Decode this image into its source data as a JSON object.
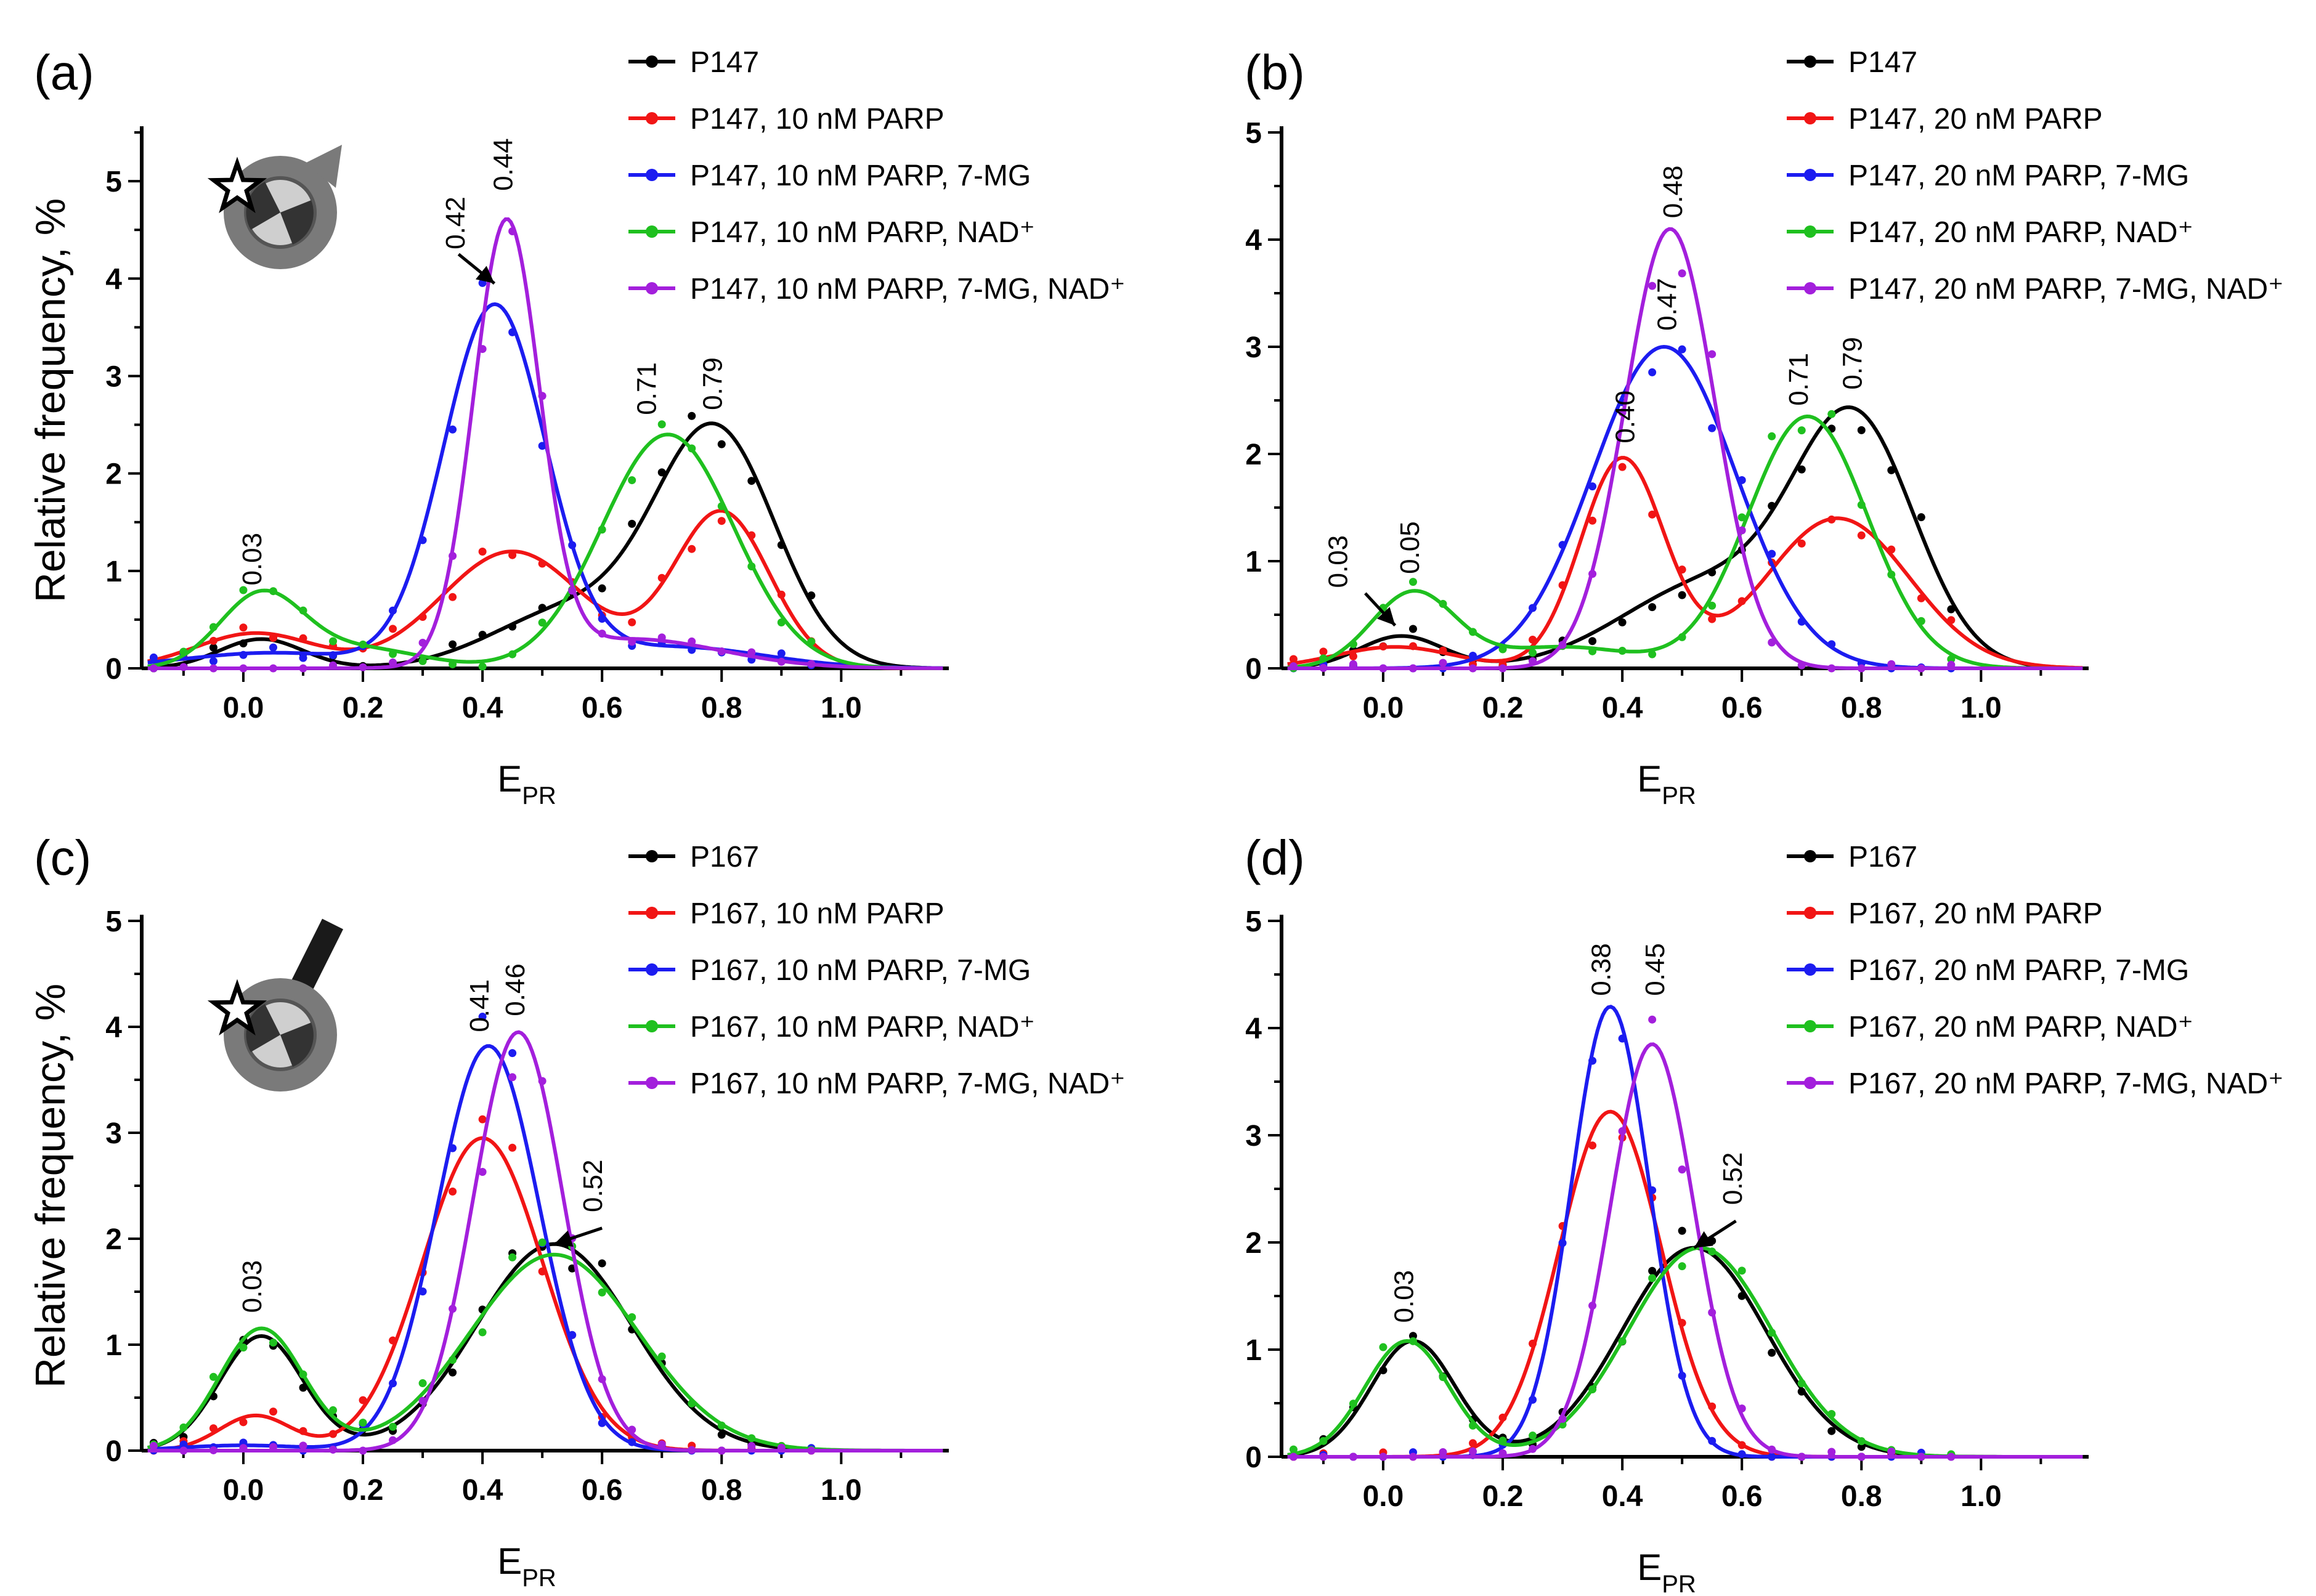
{
  "colors": {
    "black": "#000000",
    "red": "#f11515",
    "blue": "#1c1cf0",
    "green": "#1fc01f",
    "purple": "#a31fdc"
  },
  "chart_data": [
    {
      "id": "a",
      "label": "(a)",
      "type": "line",
      "xlabel": "E",
      "xlabel_sub": "PR",
      "ylabel": "Relative frequency, %",
      "xlim": [
        -0.17,
        1.18
      ],
      "ylim": [
        0,
        5.5
      ],
      "xticks": [
        "0.0",
        "0.2",
        "0.4",
        "0.6",
        "0.8",
        "1.0"
      ],
      "yticks": [
        "0",
        "1",
        "2",
        "3",
        "4",
        "5"
      ],
      "nucleosome_icon": "nucleosome-icon",
      "series": [
        {
          "name": "P147",
          "color": "black",
          "comps": [
            [
              0.3,
              0.03,
              0.07
            ],
            [
              2.4,
              0.79,
              0.1
            ],
            [
              0.6,
              0.55,
              0.13
            ]
          ]
        },
        {
          "name": "P147, 10 nM PARP",
          "color": "red",
          "comps": [
            [
              0.36,
              0.02,
              0.1
            ],
            [
              1.2,
              0.45,
              0.12
            ],
            [
              1.6,
              0.8,
              0.08
            ]
          ]
        },
        {
          "name": "P147, 10 nM PARP, 7-MG",
          "color": "blue",
          "comps": [
            [
              0.16,
              0.05,
              0.15
            ],
            [
              3.7,
              0.42,
              0.085
            ],
            [
              0.22,
              0.72,
              0.15
            ]
          ]
        },
        {
          "name": "P147, 10 nM PARP, NAD⁺",
          "color": "green",
          "comps": [
            [
              0.75,
              0.03,
              0.07
            ],
            [
              0.2,
              0.2,
              0.1
            ],
            [
              2.4,
              0.71,
              0.11
            ]
          ]
        },
        {
          "name": "P147, 10 nM PARP, 7-MG, NAD⁺",
          "color": "purple",
          "comps": [
            [
              4.5,
              0.44,
              0.055
            ],
            [
              0.3,
              0.65,
              0.15
            ]
          ]
        }
      ],
      "annotations": [
        {
          "text": "0.03",
          "x": 0.03,
          "y": 0.85,
          "rot": -90
        },
        {
          "text": "0.42",
          "x": 0.37,
          "y": 4.3,
          "rot": -90,
          "arrow": [
            0.36,
            4.25,
            0.42,
            3.95
          ]
        },
        {
          "text": "0.44",
          "x": 0.45,
          "y": 4.9,
          "rot": -90
        },
        {
          "text": "0.71",
          "x": 0.69,
          "y": 2.6,
          "rot": -90
        },
        {
          "text": "0.79",
          "x": 0.8,
          "y": 2.65,
          "rot": -90
        }
      ]
    },
    {
      "id": "b",
      "label": "(b)",
      "type": "line",
      "xlabel": "E",
      "xlabel_sub": "PR",
      "ylabel": "",
      "xlim": [
        -0.17,
        1.18
      ],
      "ylim": [
        0,
        5
      ],
      "xticks": [
        "0.0",
        "0.2",
        "0.4",
        "0.6",
        "0.8",
        "1.0"
      ],
      "yticks": [
        "0",
        "1",
        "2",
        "3",
        "4",
        "5"
      ],
      "series": [
        {
          "name": "P147",
          "color": "black",
          "comps": [
            [
              0.3,
              0.03,
              0.07
            ],
            [
              2.2,
              0.79,
              0.1
            ],
            [
              0.8,
              0.55,
              0.15
            ]
          ]
        },
        {
          "name": "P147, 20 nM PARP",
          "color": "red",
          "comps": [
            [
              0.2,
              0.02,
              0.1
            ],
            [
              1.95,
              0.4,
              0.07
            ],
            [
              1.4,
              0.76,
              0.12
            ]
          ]
        },
        {
          "name": "P147, 20 nM PARP, 7-MG",
          "color": "blue",
          "comps": [
            [
              3.0,
              0.47,
              0.12
            ]
          ]
        },
        {
          "name": "P147, 20 nM PARP, NAD⁺",
          "color": "green",
          "comps": [
            [
              0.7,
              0.05,
              0.07
            ],
            [
              2.35,
              0.71,
              0.1
            ],
            [
              0.2,
              0.3,
              0.12
            ]
          ]
        },
        {
          "name": "P147, 20 nM PARP, 7-MG, NAD⁺",
          "color": "purple",
          "comps": [
            [
              4.1,
              0.48,
              0.075
            ]
          ]
        }
      ],
      "annotations": [
        {
          "text": "0.03",
          "x": -0.06,
          "y": 0.75,
          "rot": -90,
          "arrow": [
            -0.03,
            0.7,
            0.02,
            0.4
          ]
        },
        {
          "text": "0.05",
          "x": 0.06,
          "y": 0.88,
          "rot": -90
        },
        {
          "text": "0.40",
          "x": 0.42,
          "y": 2.1,
          "rot": -90
        },
        {
          "text": "0.47",
          "x": 0.49,
          "y": 3.15,
          "rot": -90
        },
        {
          "text": "0.48",
          "x": 0.5,
          "y": 4.2,
          "rot": -90
        },
        {
          "text": "0.71",
          "x": 0.71,
          "y": 2.45,
          "rot": -90
        },
        {
          "text": "0.79",
          "x": 0.8,
          "y": 2.6,
          "rot": -90
        }
      ]
    },
    {
      "id": "c",
      "label": "(c)",
      "type": "line",
      "xlabel": "E",
      "xlabel_sub": "PR",
      "ylabel": "Relative frequency, %",
      "xlim": [
        -0.17,
        1.18
      ],
      "ylim": [
        0,
        5
      ],
      "xticks": [
        "0.0",
        "0.2",
        "0.4",
        "0.6",
        "0.8",
        "1.0"
      ],
      "yticks": [
        "0",
        "1",
        "2",
        "3",
        "4",
        "5"
      ],
      "nucleosome_icon": "nucleosome-with-linker-icon",
      "series": [
        {
          "name": "P167",
          "color": "black",
          "comps": [
            [
              1.08,
              0.03,
              0.07
            ],
            [
              1.95,
              0.52,
              0.13
            ]
          ]
        },
        {
          "name": "P167, 10 nM PARP",
          "color": "red",
          "comps": [
            [
              0.33,
              0.02,
              0.06
            ],
            [
              2.95,
              0.4,
              0.1
            ]
          ]
        },
        {
          "name": "P167, 10 nM PARP, 7-MG",
          "color": "blue",
          "comps": [
            [
              0.05,
              0.0,
              0.1
            ],
            [
              3.82,
              0.41,
              0.085
            ]
          ]
        },
        {
          "name": "P167, 10 nM PARP, NAD⁺",
          "color": "green",
          "comps": [
            [
              1.15,
              0.03,
              0.07
            ],
            [
              1.85,
              0.52,
              0.14
            ]
          ]
        },
        {
          "name": "P167, 10 nM PARP, 7-MG, NAD⁺",
          "color": "purple",
          "comps": [
            [
              3.95,
              0.46,
              0.075
            ]
          ]
        }
      ],
      "annotations": [
        {
          "text": "0.03",
          "x": 0.03,
          "y": 1.3,
          "rot": -90
        },
        {
          "text": "0.41",
          "x": 0.41,
          "y": 3.95,
          "rot": -90
        },
        {
          "text": "0.46",
          "x": 0.47,
          "y": 4.1,
          "rot": -90
        },
        {
          "text": "0.52",
          "x": 0.6,
          "y": 2.25,
          "rot": -90,
          "arrow": [
            0.6,
            2.1,
            0.52,
            1.95
          ]
        }
      ]
    },
    {
      "id": "d",
      "label": "(d)",
      "type": "line",
      "xlabel": "E",
      "xlabel_sub": "PR",
      "ylabel": "",
      "xlim": [
        -0.17,
        1.18
      ],
      "ylim": [
        0,
        5
      ],
      "xticks": [
        "0.0",
        "0.2",
        "0.4",
        "0.6",
        "0.8",
        "1.0"
      ],
      "yticks": [
        "0",
        "1",
        "2",
        "3",
        "4",
        "5"
      ],
      "series": [
        {
          "name": "P167",
          "color": "black",
          "comps": [
            [
              1.08,
              0.05,
              0.07
            ],
            [
              1.95,
              0.52,
              0.12
            ]
          ]
        },
        {
          "name": "P167, 20 nM PARP",
          "color": "red",
          "comps": [
            [
              3.22,
              0.38,
              0.085
            ]
          ]
        },
        {
          "name": "P167, 20 nM PARP, 7-MG",
          "color": "blue",
          "comps": [
            [
              4.2,
              0.38,
              0.065
            ]
          ]
        },
        {
          "name": "P167, 20 nM PARP, NAD⁺",
          "color": "green",
          "comps": [
            [
              1.08,
              0.04,
              0.07
            ],
            [
              1.95,
              0.53,
              0.12
            ]
          ]
        },
        {
          "name": "P167, 20 nM PARP, 7-MG, NAD⁺",
          "color": "purple",
          "comps": [
            [
              3.85,
              0.45,
              0.07
            ]
          ]
        }
      ],
      "annotations": [
        {
          "text": "0.03",
          "x": 0.05,
          "y": 1.25,
          "rot": -90
        },
        {
          "text": "0.38",
          "x": 0.38,
          "y": 4.3,
          "rot": -90
        },
        {
          "text": "0.45",
          "x": 0.47,
          "y": 4.3,
          "rot": -90
        },
        {
          "text": "0.52",
          "x": 0.6,
          "y": 2.35,
          "rot": -90,
          "arrow": [
            0.59,
            2.2,
            0.52,
            1.95
          ]
        }
      ]
    }
  ]
}
